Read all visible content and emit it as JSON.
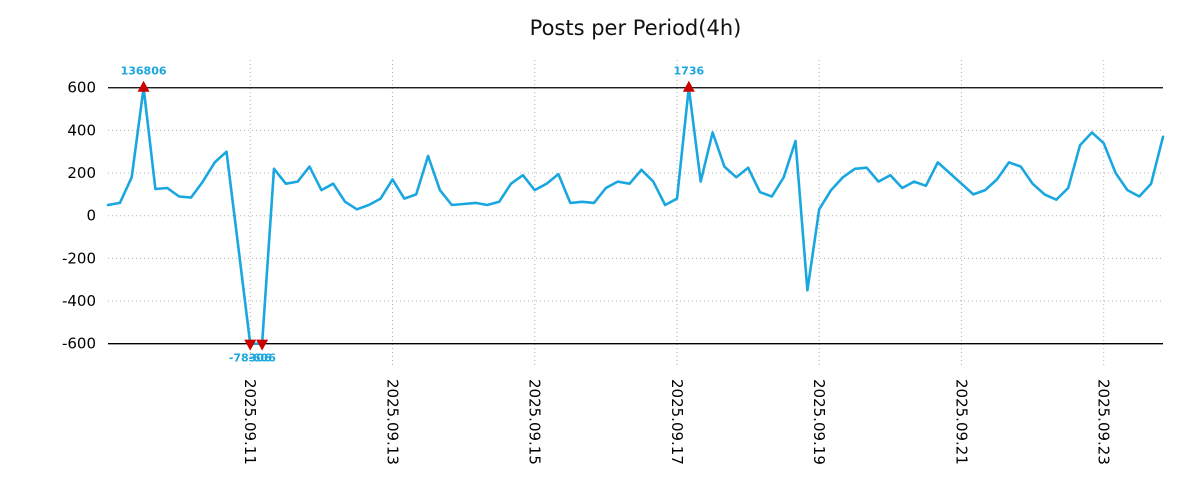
{
  "chart_data": {
    "type": "line",
    "title": "Posts per Period(4h)",
    "series_color": "#1aa7e0",
    "marker_color": "#cc0000",
    "grid": "dotted",
    "ylim": [
      -700,
      730
    ],
    "y_ticks": [
      600,
      400,
      200,
      0,
      -200,
      -400,
      -600
    ],
    "hlines": [
      600,
      -600
    ],
    "x_step_hours": 4,
    "x_tick_labels": [
      "2025.09.11",
      "2025.09.13",
      "2025.09.15",
      "2025.09.17",
      "2025.09.19",
      "2025.09.21",
      "2025.09.23"
    ],
    "x_tick_indices": [
      12,
      24,
      36,
      48,
      60,
      72,
      84
    ],
    "values": [
      50,
      60,
      180,
      600,
      125,
      130,
      90,
      85,
      160,
      250,
      300,
      -150,
      -600,
      -600,
      220,
      150,
      160,
      230,
      120,
      150,
      65,
      30,
      50,
      80,
      170,
      80,
      100,
      280,
      120,
      50,
      55,
      60,
      50,
      65,
      150,
      190,
      120,
      150,
      195,
      60,
      65,
      60,
      130,
      160,
      150,
      215,
      160,
      50,
      80,
      600,
      160,
      390,
      230,
      180,
      225,
      110,
      90,
      180,
      350,
      -350,
      30,
      120,
      180,
      220,
      225,
      160,
      190,
      130,
      160,
      140,
      250,
      200,
      150,
      100,
      120,
      170,
      250,
      230,
      150,
      100,
      75,
      130,
      330,
      390,
      340,
      200,
      120,
      90,
      150,
      370
    ],
    "annotations": [
      {
        "index": 3,
        "label": "136806",
        "direction": "up"
      },
      {
        "index": 12,
        "label": "-78306",
        "direction": "down"
      },
      {
        "index": 13,
        "label": "-606",
        "direction": "down"
      },
      {
        "index": 49,
        "label": "1736",
        "direction": "up"
      }
    ]
  }
}
